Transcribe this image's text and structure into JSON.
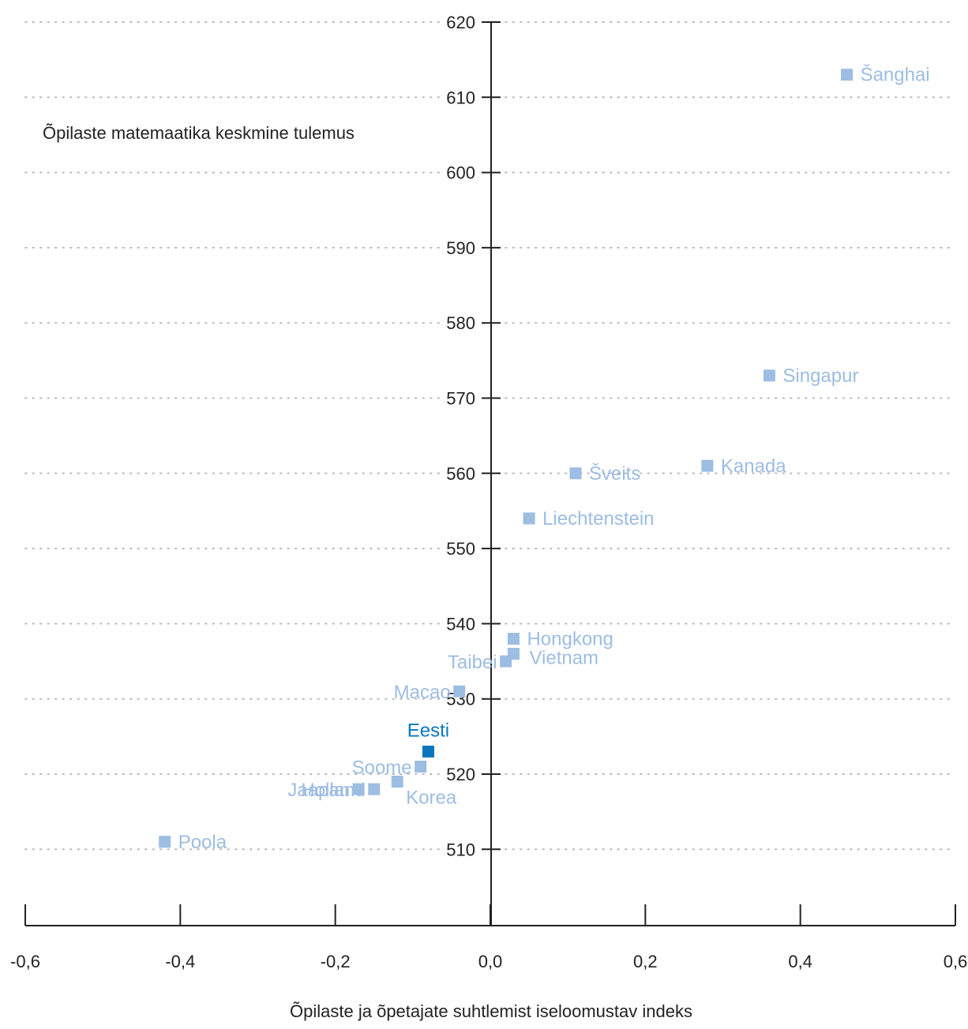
{
  "chart_data": {
    "type": "scatter",
    "xlabel": "Õpilaste ja õpetajate suhtlemist iseloomustav indeks",
    "ylabel": "Õpilaste matemaatika keskmine tulemus",
    "xlim": [
      -0.6,
      0.6
    ],
    "ylim": [
      500,
      620
    ],
    "x_ticks": [
      -0.6,
      -0.4,
      -0.2,
      0.0,
      0.2,
      0.4,
      0.6
    ],
    "x_tick_labels": [
      "-0,6",
      "-0,4",
      "-0,2",
      "0,0",
      "0,2",
      "0,4",
      "0,6"
    ],
    "y_ticks": [
      510,
      520,
      530,
      540,
      550,
      560,
      570,
      580,
      590,
      600,
      610,
      620
    ],
    "y_tick_labels": [
      "510",
      "520",
      "530",
      "540",
      "550",
      "560",
      "570",
      "580",
      "590",
      "600",
      "610",
      "620"
    ],
    "grid": "horizontal dotted",
    "colors": {
      "default": "#9dbde2",
      "highlight": "#0a77bd",
      "axis": "#222222",
      "grid": "#bbbbbb"
    },
    "points": [
      {
        "label": "Šanghai",
        "x": 0.46,
        "y": 613,
        "label_pos": "right"
      },
      {
        "label": "Singapur",
        "x": 0.36,
        "y": 573,
        "label_pos": "right"
      },
      {
        "label": "Kanada",
        "x": 0.28,
        "y": 561,
        "label_pos": "right"
      },
      {
        "label": "Šveits",
        "x": 0.11,
        "y": 560,
        "label_pos": "right"
      },
      {
        "label": "Liechtenstein",
        "x": 0.05,
        "y": 554,
        "label_pos": "right"
      },
      {
        "label": "Hongkong",
        "x": 0.03,
        "y": 538,
        "label_pos": "right"
      },
      {
        "label": "Vietnam",
        "x": 0.03,
        "y": 536,
        "label_pos": "right-low"
      },
      {
        "label": "Taibei",
        "x": 0.02,
        "y": 535,
        "label_pos": "left"
      },
      {
        "label": "Macao",
        "x": -0.04,
        "y": 531,
        "label_pos": "left"
      },
      {
        "label": "Eesti",
        "x": -0.08,
        "y": 523,
        "label_pos": "above",
        "highlight": true
      },
      {
        "label": "Soome",
        "x": -0.09,
        "y": 521,
        "label_pos": "left"
      },
      {
        "label": "Korea",
        "x": -0.12,
        "y": 519,
        "label_pos": "below-right"
      },
      {
        "label": "Holland",
        "x": -0.15,
        "y": 518,
        "label_pos": "left"
      },
      {
        "label": "Jaapan",
        "x": -0.17,
        "y": 518,
        "label_pos": "left"
      },
      {
        "label": "Poola",
        "x": -0.42,
        "y": 511,
        "label_pos": "right"
      }
    ]
  }
}
